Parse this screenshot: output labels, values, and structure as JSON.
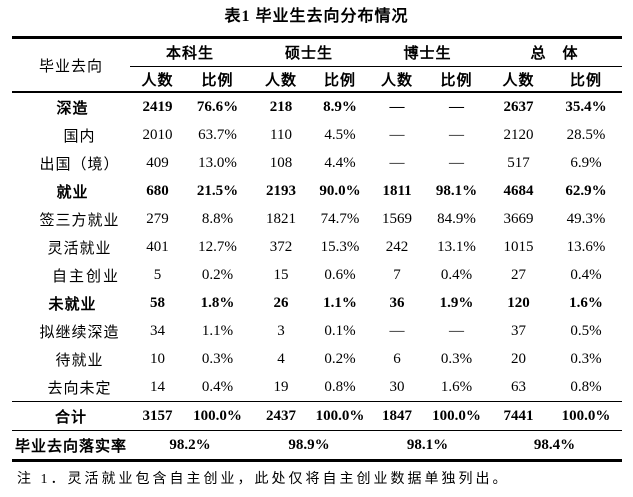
{
  "title": "表1 毕业生去向分布情况",
  "table": {
    "corner_header": "毕业去向",
    "group_headers": [
      "本科生",
      "硕士生",
      "博士生",
      "总　体"
    ],
    "sub_headers": [
      "人数",
      "比例",
      "人数",
      "比例",
      "人数",
      "比例",
      "人数",
      "比例"
    ],
    "rows": [
      {
        "label": "深造",
        "level": 0,
        "bold": true,
        "values": [
          "2419",
          "76.6%",
          "218",
          "8.9%",
          "—",
          "—",
          "2637",
          "35.4%"
        ]
      },
      {
        "label": "国内",
        "level": 1,
        "bold": false,
        "values": [
          "2010",
          "63.7%",
          "110",
          "4.5%",
          "—",
          "—",
          "2120",
          "28.5%"
        ]
      },
      {
        "label": "出国（境）",
        "level": 1,
        "bold": false,
        "values": [
          "409",
          "13.0%",
          "108",
          "4.4%",
          "—",
          "—",
          "517",
          "6.9%"
        ]
      },
      {
        "label": "就业",
        "level": 0,
        "bold": true,
        "values": [
          "680",
          "21.5%",
          "2193",
          "90.0%",
          "1811",
          "98.1%",
          "4684",
          "62.9%"
        ]
      },
      {
        "label": "签三方就业",
        "level": 1,
        "bold": false,
        "values": [
          "279",
          "8.8%",
          "1821",
          "74.7%",
          "1569",
          "84.9%",
          "3669",
          "49.3%"
        ]
      },
      {
        "label": "灵活就业",
        "level": 1,
        "bold": false,
        "values": [
          "401",
          "12.7%",
          "372",
          "15.3%",
          "242",
          "13.1%",
          "1015",
          "13.6%"
        ]
      },
      {
        "label": "自主创业",
        "level": 2,
        "bold": false,
        "values": [
          "5",
          "0.2%",
          "15",
          "0.6%",
          "7",
          "0.4%",
          "27",
          "0.4%"
        ]
      },
      {
        "label": "未就业",
        "level": 0,
        "bold": true,
        "values": [
          "58",
          "1.8%",
          "26",
          "1.1%",
          "36",
          "1.9%",
          "120",
          "1.6%"
        ]
      },
      {
        "label": "拟继续深造",
        "level": 1,
        "bold": false,
        "values": [
          "34",
          "1.1%",
          "3",
          "0.1%",
          "—",
          "—",
          "37",
          "0.5%"
        ]
      },
      {
        "label": "待就业",
        "level": 1,
        "bold": false,
        "values": [
          "10",
          "0.3%",
          "4",
          "0.2%",
          "6",
          "0.3%",
          "20",
          "0.3%"
        ]
      },
      {
        "label": "去向未定",
        "level": 1,
        "bold": false,
        "values": [
          "14",
          "0.4%",
          "19",
          "0.8%",
          "30",
          "1.6%",
          "63",
          "0.8%"
        ]
      }
    ],
    "total_row": {
      "label": "合计",
      "values": [
        "3157",
        "100.0%",
        "2437",
        "100.0%",
        "1847",
        "100.0%",
        "7441",
        "100.0%"
      ]
    },
    "rate_row": {
      "label": "毕业去向落实率",
      "values": [
        "98.2%",
        "98.9%",
        "98.1%",
        "98.4%"
      ]
    }
  },
  "note": "注 1．灵活就业包含自主创业，此处仅将自主创业数据单独列出。"
}
